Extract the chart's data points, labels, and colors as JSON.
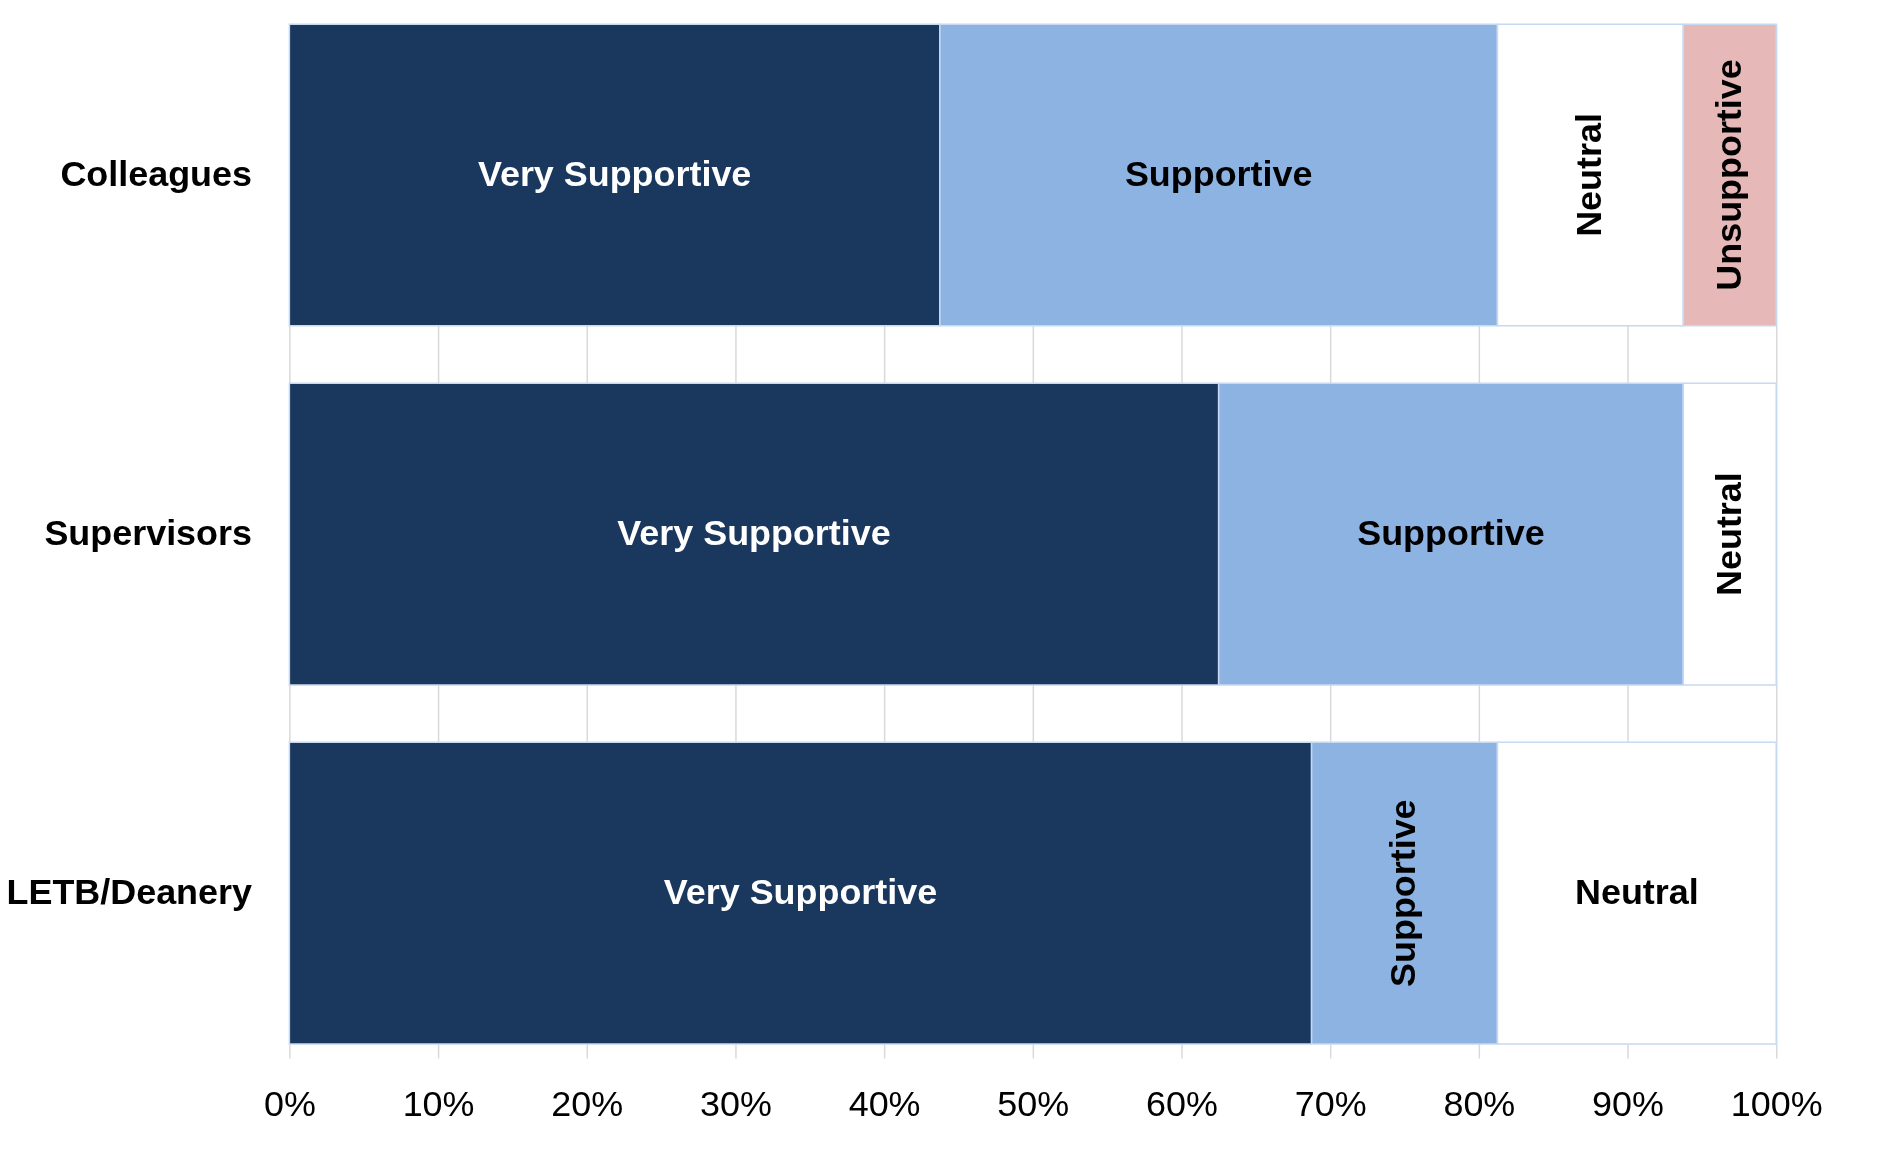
{
  "chart_data": {
    "type": "bar",
    "orientation": "horizontal",
    "stacked": true,
    "categories": [
      "Colleagues",
      "Supervisors",
      "LETB/Deanery"
    ],
    "series": [
      {
        "name": "Very Supportive",
        "color": "#1a375e",
        "values": [
          43.75,
          62.5,
          68.75
        ]
      },
      {
        "name": "Supportive",
        "color": "#8db3e2",
        "values": [
          37.5,
          31.25,
          12.5
        ]
      },
      {
        "name": "Neutral",
        "color": "#ffffff",
        "values": [
          12.5,
          6.25,
          18.75
        ]
      },
      {
        "name": "Unsupportive",
        "color": "#e6b8b7",
        "values": [
          6.25,
          null,
          null
        ]
      }
    ],
    "xlim": [
      0,
      100
    ],
    "xticks": [
      {
        "value": 0,
        "label": "0%"
      },
      {
        "value": 10,
        "label": "10%"
      },
      {
        "value": 20,
        "label": "20%"
      },
      {
        "value": 30,
        "label": "30%"
      },
      {
        "value": 40,
        "label": "40%"
      },
      {
        "value": 50,
        "label": "50%"
      },
      {
        "value": 60,
        "label": "60%"
      },
      {
        "value": 70,
        "label": "70%"
      },
      {
        "value": 80,
        "label": "80%"
      },
      {
        "value": 90,
        "label": "90%"
      },
      {
        "value": 100,
        "label": "100%"
      }
    ],
    "grid": "x",
    "legend": false
  }
}
